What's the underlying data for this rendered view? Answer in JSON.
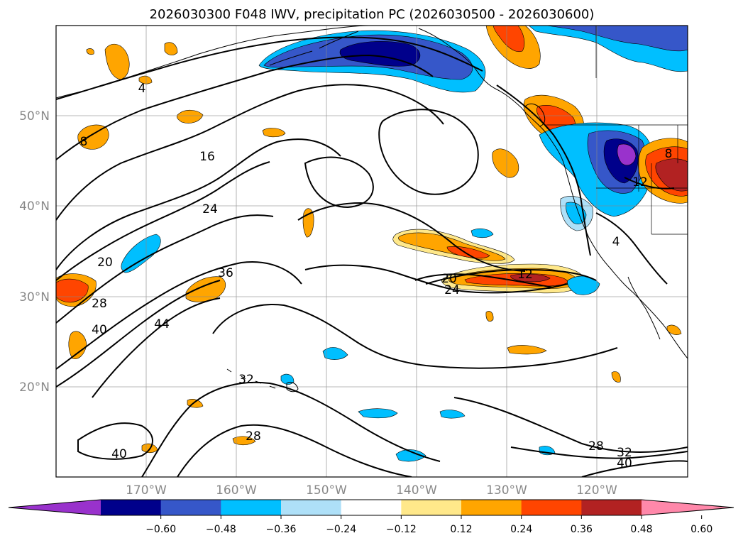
{
  "title": "2026030300 F048 IWV, precipitation PC (2026030500 - 2026030600)",
  "map": {
    "lat_ticks": [
      "50°N",
      "40°N",
      "30°N",
      "20°N"
    ],
    "lon_ticks": [
      "170°W",
      "160°W",
      "150°W",
      "140°W",
      "130°W",
      "120°W"
    ],
    "grid": true
  },
  "colorbar": {
    "extend": "both",
    "colors": [
      "#9932cc",
      "#00008b",
      "#3657c9",
      "#00bfff",
      "#aee0f8",
      "#ffffff",
      "#ffe88a",
      "#ffa500",
      "#ff4500",
      "#b22222",
      "#ff88aa"
    ],
    "tick_labels": [
      "−0.60",
      "−0.48",
      "−0.36",
      "−0.24",
      "−0.12",
      "0.12",
      "0.24",
      "0.36",
      "0.48",
      "0.60"
    ]
  },
  "contour_labels": [
    "4",
    "8",
    "16",
    "24",
    "20",
    "36",
    "28",
    "40",
    "44",
    "32",
    "28",
    "40",
    "20",
    "24",
    "12",
    "8",
    "4",
    "12",
    "28",
    "32",
    "40"
  ]
}
